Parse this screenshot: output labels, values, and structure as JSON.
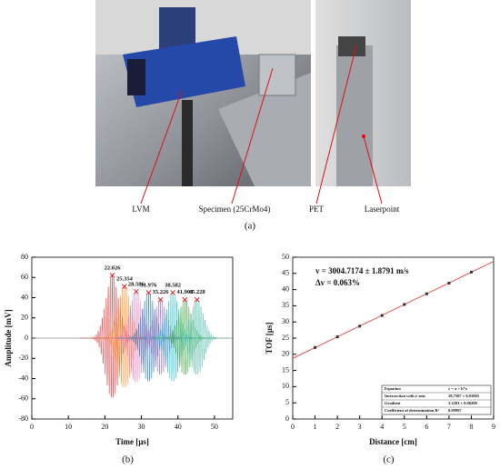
{
  "figure_a": {
    "labels": [
      "LVM",
      "Specimen (25CrMo4)",
      "PET",
      "Laserpoint"
    ],
    "caption": "(a)"
  },
  "chart_data": [
    {
      "type": "line",
      "xlabel": "Time [µs]",
      "ylabel": "Amplitude [mV]",
      "caption": "(b)",
      "xlim": [
        0,
        55
      ],
      "xticks": [
        0,
        10,
        20,
        30,
        40,
        50
      ],
      "ylim": [
        -80,
        80
      ],
      "yticks": [
        -80,
        -60,
        -40,
        -20,
        0,
        20,
        40,
        60,
        80
      ],
      "marker_color": "#e02020",
      "series": [
        {
          "x": [
            22.026,
            25.354,
            28.586,
            31.976,
            35.226,
            38.582,
            41.908,
            45.228
          ],
          "values": [
            62,
            51,
            46,
            45,
            38,
            45,
            38,
            38
          ],
          "colors": [
            "#d62728",
            "#ff7f0e",
            "#e377c2",
            "#1f77b4",
            "#9467bd",
            "#17becf",
            "#2ca02c",
            "#3cb8a0"
          ]
        }
      ]
    },
    {
      "type": "scatter",
      "xlabel": "Distance [cm]",
      "ylabel": "TOF [µs]",
      "caption": "(c)",
      "xlim": [
        0,
        9
      ],
      "xticks": [
        0,
        1,
        2,
        3,
        4,
        5,
        6,
        7,
        8,
        9
      ],
      "ylim": [
        0,
        50
      ],
      "yticks": [
        0,
        5,
        10,
        15,
        20,
        25,
        30,
        35,
        40,
        45,
        50
      ],
      "x": [
        1,
        2,
        3,
        4,
        5,
        6,
        7,
        8
      ],
      "values": [
        22.1,
        25.4,
        28.7,
        32.0,
        35.4,
        38.7,
        42.0,
        45.4
      ],
      "color": "#333333",
      "line_color": "#e03030",
      "fit": {
        "intercept": 18.7507,
        "slope": 3.3281
      },
      "annotations": [
        "v = 3004.7174 ± 1.8791 m/s",
        "Δv = 0.063%"
      ],
      "table": [
        [
          "Equation",
          "y = a + b*x"
        ],
        [
          "Intersection with y-axis",
          "18.7507 ± 0.01065"
        ],
        [
          "Gradient",
          "3.3281 ± 0.00208"
        ],
        [
          "Coefficient of determination R²",
          "0.99997"
        ]
      ]
    }
  ]
}
